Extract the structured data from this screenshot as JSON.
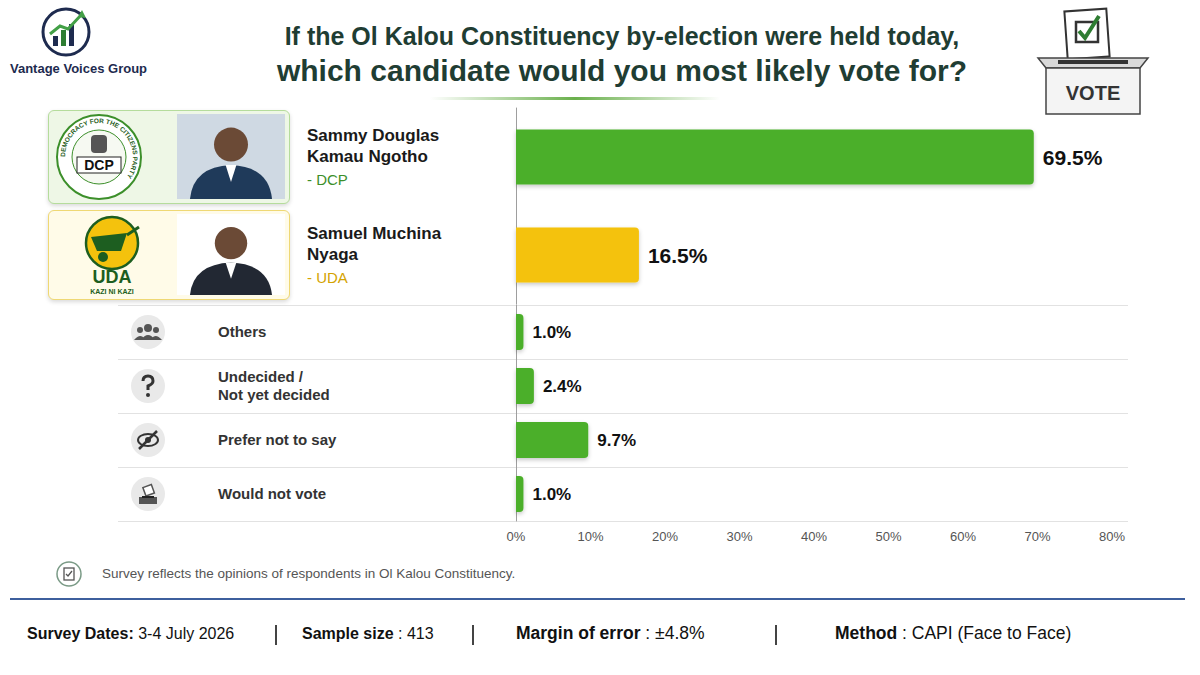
{
  "page": {
    "brand": "Vantage Voices Group",
    "ballot_box_label": "VOTE",
    "candidates": [
      {
        "party": "- DCP",
        "logo_text": "DCP",
        "logo_ring_text": "DEMOCRACY FOR THE CITIZENS PARTY"
      },
      {
        "party": "- UDA",
        "logo_text": "UDA",
        "logo_motto": "KAZI NI KAZI"
      }
    ],
    "note": "Survey reflects the opinions of respondents in Ol Kalou Constituency.",
    "footer": [
      {
        "label": "Survey Dates:",
        "value": "3-4 July 2026"
      },
      {
        "label": "Sample size",
        "value": ": 413"
      },
      {
        "label": "Margin of error",
        "value": ": ±4.8%"
      },
      {
        "label": "Method",
        "value": ": CAPI (Face to Face)"
      }
    ]
  },
  "chart_data": {
    "type": "bar",
    "orientation": "horizontal",
    "title": [
      "If the Ol Kalou Constituency by-election were held today,",
      "which candidate would you most likely vote for?"
    ],
    "categories": [
      "Sammy Douglas Kamau Ngotho",
      "Samuel Muchina Nyaga",
      "Others",
      "Undecided / Not yet decided",
      "Prefer not to say",
      "Would not vote"
    ],
    "values": [
      69.5,
      16.5,
      1.0,
      2.4,
      9.7,
      1.0
    ],
    "value_labels": [
      "69.5%",
      "16.5%",
      "1.0%",
      "2.4%",
      "9.7%",
      "1.0%"
    ],
    "colors": [
      "#4caf2a",
      "#f4c20d",
      "#4caf2a",
      "#4caf2a",
      "#4caf2a",
      "#4caf2a"
    ],
    "xlim": [
      0,
      80
    ],
    "xticks": [
      {
        "value": 0,
        "label": "0%"
      },
      {
        "value": 10,
        "label": "10%"
      },
      {
        "value": 20,
        "label": "20%"
      },
      {
        "value": 30,
        "label": "30%"
      },
      {
        "value": 40,
        "label": "40%"
      },
      {
        "value": 50,
        "label": "50%"
      },
      {
        "value": 60,
        "label": "60%"
      },
      {
        "value": 70,
        "label": "70%"
      },
      {
        "value": 80,
        "label": "80%"
      }
    ],
    "grid": false,
    "data_labels": true,
    "tick_labels": "x"
  }
}
